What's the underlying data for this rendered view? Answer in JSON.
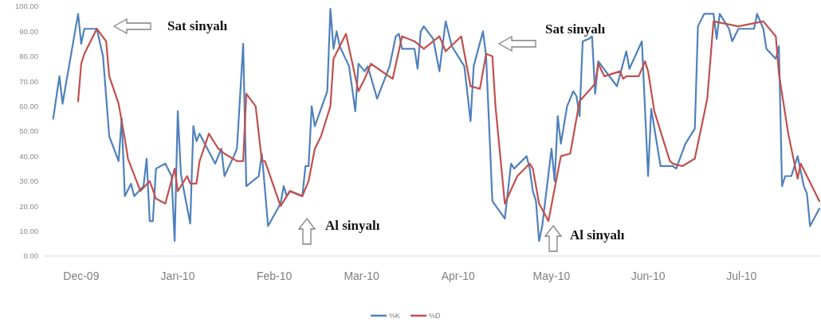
{
  "chart_data": {
    "type": "line",
    "ylim": [
      0,
      100
    ],
    "yticks": [
      {
        "value": 0,
        "label": "0.00"
      },
      {
        "value": 10,
        "label": "10.00"
      },
      {
        "value": 20,
        "label": "20.00"
      },
      {
        "value": 30,
        "label": "30.00"
      },
      {
        "value": 40,
        "label": "40.00"
      },
      {
        "value": 50,
        "label": "50.00"
      },
      {
        "value": 60,
        "label": "60.00"
      },
      {
        "value": 70,
        "label": "70.00"
      },
      {
        "value": 80,
        "label": "80.00"
      },
      {
        "value": 90,
        "label": "90.00"
      },
      {
        "value": 100,
        "label": "100.00"
      }
    ],
    "xlim": [
      "2009-11-19",
      "2010-07-26"
    ],
    "xticks": [
      {
        "value": "2009-12-01",
        "label": "Dec-09"
      },
      {
        "value": "2010-01-01",
        "label": "Jan-10"
      },
      {
        "value": "2010-02-01",
        "label": "Feb-10"
      },
      {
        "value": "2010-03-01",
        "label": "Mar-10"
      },
      {
        "value": "2010-04-01",
        "label": "Apr-10"
      },
      {
        "value": "2010-05-01",
        "label": "May-10"
      },
      {
        "value": "2010-06-01",
        "label": "Jun-10"
      },
      {
        "value": "2010-07-01",
        "label": "Jul-10"
      }
    ],
    "grid": false,
    "legend": "bottom",
    "series": [
      {
        "name": "%K",
        "color": "#4f81bd",
        "x": [
          "2009-11-22",
          "2009-11-24",
          "2009-11-25",
          "2009-11-30",
          "2009-12-01",
          "2009-12-02",
          "2009-12-06",
          "2009-12-08",
          "2009-12-10",
          "2009-12-13",
          "2009-12-14",
          "2009-12-15",
          "2009-12-17",
          "2009-12-18",
          "2009-12-21",
          "2009-12-22",
          "2009-12-23",
          "2009-12-24",
          "2009-12-25",
          "2009-12-28",
          "2009-12-30",
          "2009-12-31",
          "2010-01-01",
          "2010-01-02",
          "2010-01-03",
          "2010-01-05",
          "2010-01-06",
          "2010-01-07",
          "2010-01-08",
          "2010-01-13",
          "2010-01-15",
          "2010-01-16",
          "2010-01-19",
          "2010-01-20",
          "2010-01-22",
          "2010-01-23",
          "2010-01-27",
          "2010-01-28",
          "2010-01-30",
          "2010-02-03",
          "2010-02-04",
          "2010-02-05",
          "2010-02-06",
          "2010-02-10",
          "2010-02-11",
          "2010-02-12",
          "2010-02-13",
          "2010-02-14",
          "2010-02-18",
          "2010-02-19",
          "2010-02-20",
          "2010-02-21",
          "2010-02-22",
          "2010-02-25",
          "2010-02-27",
          "2010-02-28",
          "2010-03-02",
          "2010-03-03",
          "2010-03-06",
          "2010-03-10",
          "2010-03-12",
          "2010-03-13",
          "2010-03-14",
          "2010-03-18",
          "2010-03-19",
          "2010-03-20",
          "2010-03-21",
          "2010-03-24",
          "2010-03-26",
          "2010-03-28",
          "2010-03-30",
          "2010-04-03",
          "2010-04-05",
          "2010-04-06",
          "2010-04-09",
          "2010-04-10",
          "2010-04-12",
          "2010-04-16",
          "2010-04-18",
          "2010-04-19",
          "2010-04-23",
          "2010-04-24",
          "2010-04-25",
          "2010-04-26",
          "2010-04-27",
          "2010-04-28",
          "2010-05-01",
          "2010-05-02",
          "2010-05-03",
          "2010-05-04",
          "2010-05-06",
          "2010-05-08",
          "2010-05-09",
          "2010-05-10",
          "2010-05-11",
          "2010-05-13",
          "2010-05-14",
          "2010-05-15",
          "2010-05-16",
          "2010-05-22",
          "2010-05-25",
          "2010-05-26",
          "2010-05-30",
          "2010-06-01",
          "2010-06-02",
          "2010-06-05",
          "2010-06-09",
          "2010-06-10",
          "2010-06-13",
          "2010-06-16",
          "2010-06-17",
          "2010-06-19",
          "2010-06-22",
          "2010-06-23",
          "2010-06-24",
          "2010-06-27",
          "2010-06-28",
          "2010-06-30",
          "2010-07-02",
          "2010-07-05",
          "2010-07-06",
          "2010-07-08",
          "2010-07-09",
          "2010-07-12",
          "2010-07-13",
          "2010-07-14",
          "2010-07-15",
          "2010-07-17",
          "2010-07-19",
          "2010-07-21",
          "2010-07-22",
          "2010-07-23",
          "2010-07-26"
        ],
        "values": [
          55,
          72,
          61,
          97,
          85,
          91,
          91,
          80,
          48,
          38,
          55,
          24,
          29,
          24,
          28,
          39,
          14,
          14,
          35,
          37,
          32,
          6,
          58,
          33,
          26,
          13,
          52,
          46,
          49,
          37,
          43,
          32,
          40,
          43,
          85,
          28,
          32,
          41,
          12,
          21,
          28,
          24,
          26,
          24,
          36,
          36,
          60,
          52,
          66,
          99,
          83,
          90,
          84,
          76,
          58,
          77,
          74,
          76,
          63,
          76,
          88,
          89,
          83,
          83,
          75,
          90,
          92,
          87,
          74,
          94,
          84,
          76,
          54,
          76,
          90,
          80,
          22,
          15,
          37,
          35,
          40,
          35,
          26,
          22,
          6,
          12,
          43,
          30,
          56,
          45,
          60,
          66,
          64,
          56,
          86,
          87,
          88,
          65,
          78,
          68,
          82,
          75,
          86,
          32,
          59,
          36,
          36,
          35,
          45,
          51,
          92,
          97,
          97,
          87,
          97,
          91,
          86,
          91,
          91,
          91,
          97,
          91,
          83,
          79,
          84,
          28,
          32,
          32,
          40,
          28,
          25,
          12,
          19
        ]
      },
      {
        "name": "%D",
        "color": "#c0504d",
        "x": [
          "2009-11-30",
          "2009-12-01",
          "2009-12-02",
          "2009-12-06",
          "2009-12-09",
          "2009-12-10",
          "2009-12-13",
          "2009-12-15",
          "2009-12-16",
          "2009-12-20",
          "2009-12-23",
          "2009-12-25",
          "2009-12-28",
          "2009-12-31",
          "2010-01-01",
          "2010-01-04",
          "2010-01-05",
          "2010-01-07",
          "2010-01-08",
          "2010-01-11",
          "2010-01-14",
          "2010-01-16",
          "2010-01-20",
          "2010-01-22",
          "2010-01-23",
          "2010-01-26",
          "2010-01-28",
          "2010-01-29",
          "2010-02-03",
          "2010-02-06",
          "2010-02-10",
          "2010-02-12",
          "2010-02-14",
          "2010-02-16",
          "2010-02-19",
          "2010-02-20",
          "2010-02-24",
          "2010-02-28",
          "2010-03-02",
          "2010-03-04",
          "2010-03-11",
          "2010-03-14",
          "2010-03-18",
          "2010-03-21",
          "2010-03-26",
          "2010-03-28",
          "2010-04-02",
          "2010-04-05",
          "2010-04-08",
          "2010-04-10",
          "2010-04-12",
          "2010-04-13",
          "2010-04-16",
          "2010-04-20",
          "2010-04-24",
          "2010-04-25",
          "2010-04-27",
          "2010-04-30",
          "2010-05-04",
          "2010-05-07",
          "2010-05-09",
          "2010-05-10",
          "2010-05-15",
          "2010-05-16",
          "2010-05-18",
          "2010-05-23",
          "2010-05-24",
          "2010-05-25",
          "2010-05-29",
          "2010-05-31",
          "2010-06-01",
          "2010-06-03",
          "2010-06-06",
          "2010-06-08",
          "2010-06-09",
          "2010-06-12",
          "2010-06-16",
          "2010-06-20",
          "2010-06-22",
          "2010-06-30",
          "2010-07-08",
          "2010-07-12",
          "2010-07-13",
          "2010-07-16",
          "2010-07-19",
          "2010-07-20",
          "2010-07-22",
          "2010-07-26"
        ],
        "values": [
          62,
          77,
          81,
          91,
          86,
          72,
          61,
          47,
          39,
          26,
          30,
          23,
          21,
          35,
          26,
          32,
          29,
          29,
          38,
          49,
          43,
          41,
          38,
          38,
          65,
          60,
          38,
          38,
          20,
          26,
          24,
          30,
          43,
          48,
          60,
          79,
          89,
          66,
          71,
          77,
          71,
          88,
          86,
          83,
          88,
          82,
          88,
          68,
          67,
          81,
          80,
          60,
          21,
          32,
          37,
          35,
          21,
          14,
          40,
          41,
          55,
          62,
          69,
          77,
          72,
          74,
          71,
          72,
          72,
          78,
          74,
          58,
          46,
          38,
          37,
          36,
          39,
          63,
          94,
          92,
          94,
          88,
          73,
          49,
          31,
          37,
          32,
          22
        ]
      }
    ],
    "annotations": [
      "Sat sinyalı",
      "Al sinyalı",
      "Sat sinyalı",
      "Al sinyalı"
    ]
  }
}
